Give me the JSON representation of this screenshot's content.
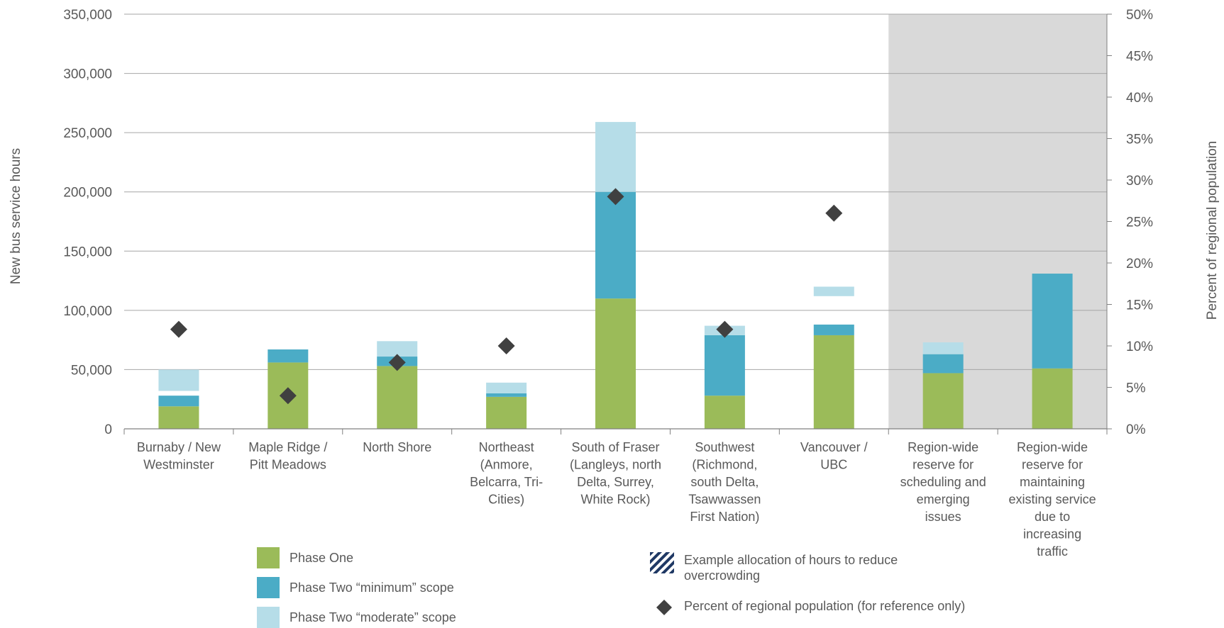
{
  "chart_data": {
    "type": "bar",
    "stacked": true,
    "categories": [
      [
        "Burnaby / New",
        "Westminster"
      ],
      [
        "Maple Ridge /",
        "Pitt Meadows"
      ],
      [
        "North Shore"
      ],
      [
        "Northeast",
        "(Anmore,",
        "Belcarra, Tri-",
        "Cities)"
      ],
      [
        "South of Fraser",
        "(Langleys, north",
        "Delta, Surrey,",
        "White Rock)"
      ],
      [
        "Southwest",
        "(Richmond,",
        "south Delta,",
        "Tsawwassen",
        "First Nation)"
      ],
      [
        "Vancouver /",
        "UBC"
      ],
      [
        "Region-wide",
        "reserve for",
        "scheduling and",
        "emerging",
        "issues"
      ],
      [
        "Region-wide",
        "reserve for",
        "maintaining",
        "existing service",
        "due to",
        "increasing",
        "traffic"
      ]
    ],
    "series": [
      {
        "name": "Phase One",
        "color": "#9bbb59",
        "values": [
          19000,
          56000,
          53000,
          27000,
          110000,
          28000,
          79000,
          47000,
          51000
        ]
      },
      {
        "name": "Phase Two “minimum” scope",
        "color": "#4bacc6",
        "values": [
          9000,
          11000,
          8000,
          3000,
          90000,
          51000,
          9000,
          16000,
          80000
        ]
      },
      {
        "name": "Phase Two “moderate” scope",
        "color": "#b6dde8",
        "values": [
          [
            32000,
            50000
          ],
          [
            0,
            0
          ],
          [
            61000,
            74000
          ],
          [
            30000,
            39000
          ],
          [
            200000,
            259000
          ],
          [
            79000,
            87000
          ],
          [
            112000,
            120000
          ],
          [
            63000,
            73000
          ],
          [
            0,
            0
          ]
        ]
      }
    ],
    "population_pct": {
      "name": "Percent of regional population (for reference only)",
      "color": "#404040",
      "values": [
        12,
        4,
        8,
        10,
        28,
        12,
        26,
        null,
        null
      ]
    },
    "shaded_categories": [
      7,
      8
    ],
    "shade_color": "#d9d9d9",
    "ylabel": "New bus service hours",
    "y2label": "Percent of regional population",
    "ylim": [
      0,
      350000
    ],
    "y2lim": [
      0,
      50
    ],
    "yticks": [
      "0",
      "50,000",
      "100,000",
      "150,000",
      "200,000",
      "250,000",
      "300,000",
      "350,000"
    ],
    "y2ticks": [
      "0%",
      "5%",
      "10%",
      "15%",
      "20%",
      "25%",
      "30%",
      "35%",
      "40%",
      "45%",
      "50%"
    ],
    "grid": true
  },
  "legend": {
    "phase_one": "Phase One",
    "phase_two_min": "Phase Two “minimum” scope",
    "phase_two_mod": "Phase Two “moderate” scope",
    "overcrowding": "Example allocation of hours to reduce overcrowding",
    "population": "Percent of regional population (for reference only)",
    "overcrowding_colors": [
      "#1f3864",
      "#ffffff"
    ]
  }
}
